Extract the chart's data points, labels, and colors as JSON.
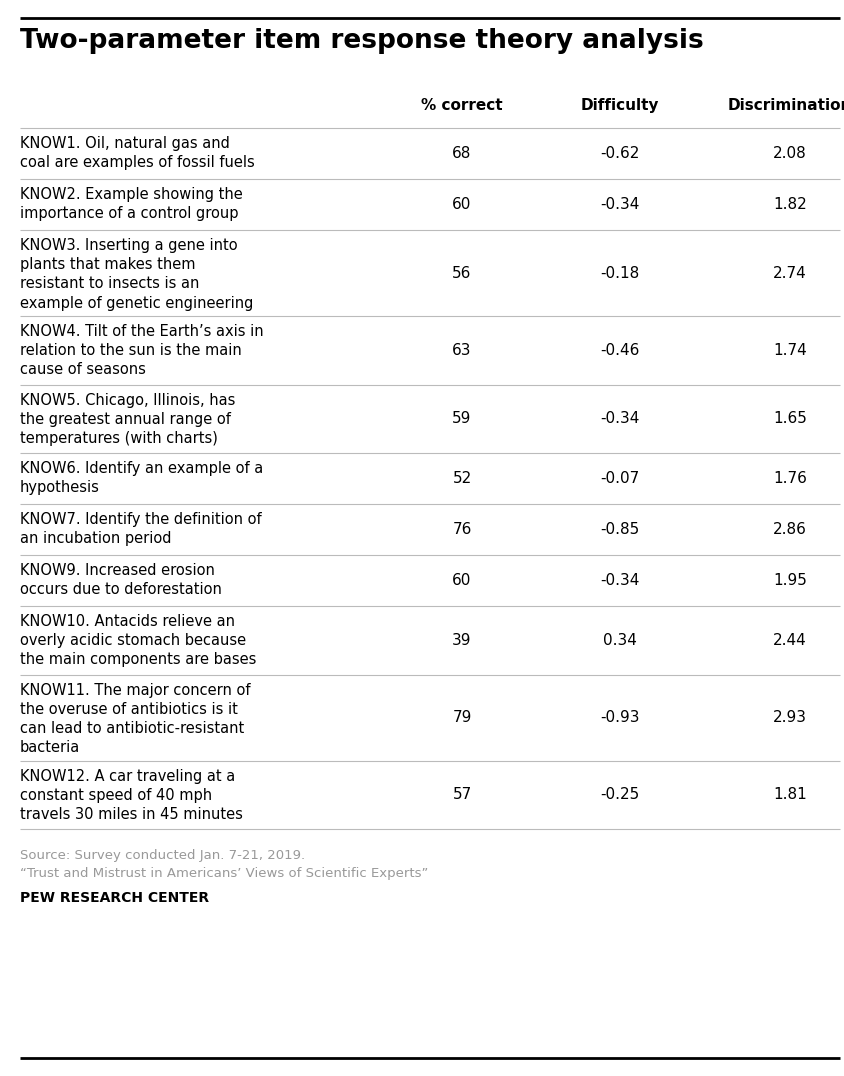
{
  "title": "Two-parameter item response theory analysis",
  "col_headers": [
    "% correct",
    "Difficulty",
    "Discrimination"
  ],
  "rows": [
    {
      "label": "KNOW1. Oil, natural gas and\ncoal are examples of fossil fuels",
      "values": [
        "68",
        "-0.62",
        "2.08"
      ],
      "nlines": 2
    },
    {
      "label": "KNOW2. Example showing the\nimportance of a control group",
      "values": [
        "60",
        "-0.34",
        "1.82"
      ],
      "nlines": 2
    },
    {
      "label": "KNOW3. Inserting a gene into\nplants that makes them\nresistant to insects is an\nexample of genetic engineering",
      "values": [
        "56",
        "-0.18",
        "2.74"
      ],
      "nlines": 4
    },
    {
      "label": "KNOW4. Tilt of the Earth’s axis in\nrelation to the sun is the main\ncause of seasons",
      "values": [
        "63",
        "-0.46",
        "1.74"
      ],
      "nlines": 3
    },
    {
      "label": "KNOW5. Chicago, Illinois, has\nthe greatest annual range of\ntemperatures (with charts)",
      "values": [
        "59",
        "-0.34",
        "1.65"
      ],
      "nlines": 3
    },
    {
      "label": "KNOW6. Identify an example of a\nhypothesis",
      "values": [
        "52",
        "-0.07",
        "1.76"
      ],
      "nlines": 2
    },
    {
      "label": "KNOW7. Identify the definition of\nan incubation period",
      "values": [
        "76",
        "-0.85",
        "2.86"
      ],
      "nlines": 2
    },
    {
      "label": "KNOW9. Increased erosion\noccurs due to deforestation",
      "values": [
        "60",
        "-0.34",
        "1.95"
      ],
      "nlines": 2
    },
    {
      "label": "KNOW10. Antacids relieve an\noverly acidic stomach because\nthe main components are bases",
      "values": [
        "39",
        "0.34",
        "2.44"
      ],
      "nlines": 3
    },
    {
      "label": "KNOW11. The major concern of\nthe overuse of antibiotics is it\ncan lead to antibiotic-resistant\nbacteria",
      "values": [
        "79",
        "-0.93",
        "2.93"
      ],
      "nlines": 4
    },
    {
      "label": "KNOW12. A car traveling at a\nconstant speed of 40 mph\ntravels 30 miles in 45 minutes",
      "values": [
        "57",
        "-0.25",
        "1.81"
      ],
      "nlines": 3
    }
  ],
  "source_line1": "Source: Survey conducted Jan. 7-21, 2019.",
  "source_line2": "“Trust and Mistrust in Americans’ Views of Scientific Experts”",
  "footer": "PEW RESEARCH CENTER",
  "top_line_color": "#000000",
  "bottom_line_color": "#000000",
  "header_color": "#000000",
  "row_sep_color": "#bbbbbb",
  "label_color": "#000000",
  "value_color": "#000000",
  "source_color": "#999999",
  "footer_color": "#000000",
  "bg_color": "#ffffff",
  "title_fontsize": 19,
  "header_fontsize": 11,
  "label_fontsize": 10.5,
  "value_fontsize": 11,
  "source_fontsize": 9.5,
  "footer_fontsize": 10
}
